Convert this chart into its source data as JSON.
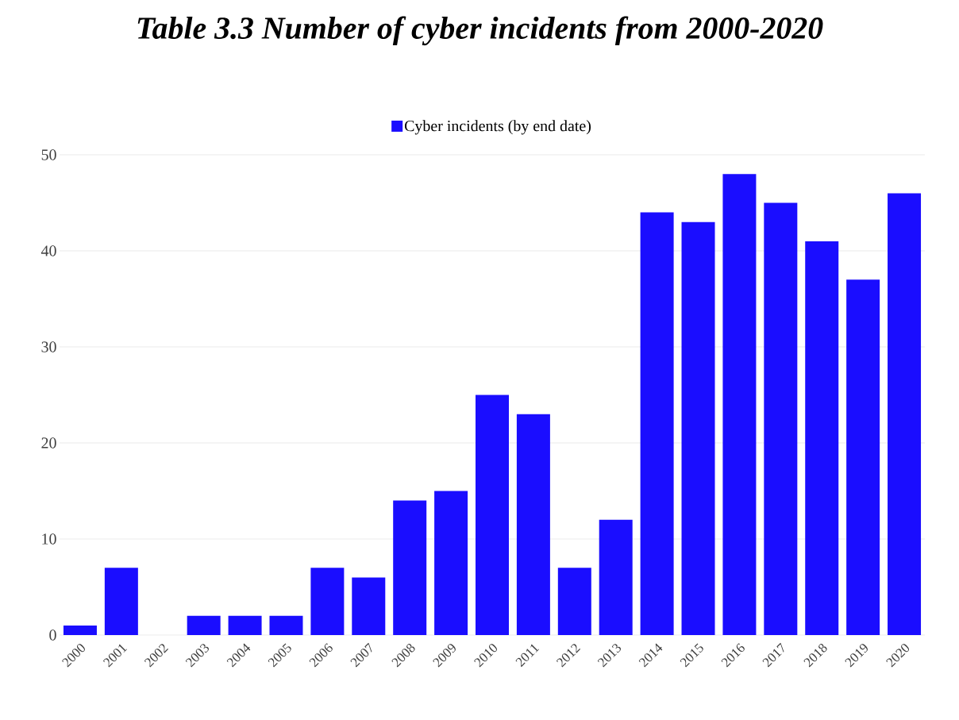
{
  "chart_data": {
    "type": "bar",
    "title": "Table 3.3 Number of cyber incidents from 2000-2020",
    "categories": [
      "2000",
      "2001",
      "2002",
      "2003",
      "2004",
      "2005",
      "2006",
      "2007",
      "2008",
      "2009",
      "2010",
      "2011",
      "2012",
      "2013",
      "2014",
      "2015",
      "2016",
      "2017",
      "2018",
      "2019",
      "2020"
    ],
    "series": [
      {
        "name": "Cyber incidents (by end date)",
        "color": "#1a0dff",
        "values": [
          1,
          7,
          0,
          2,
          2,
          2,
          7,
          6,
          14,
          15,
          25,
          23,
          7,
          12,
          44,
          43,
          48,
          45,
          41,
          37,
          46
        ]
      }
    ],
    "ylim": [
      0,
      50
    ],
    "yticks": [
      0,
      10,
      20,
      30,
      40,
      50
    ],
    "grid": "y",
    "legend": "top"
  }
}
